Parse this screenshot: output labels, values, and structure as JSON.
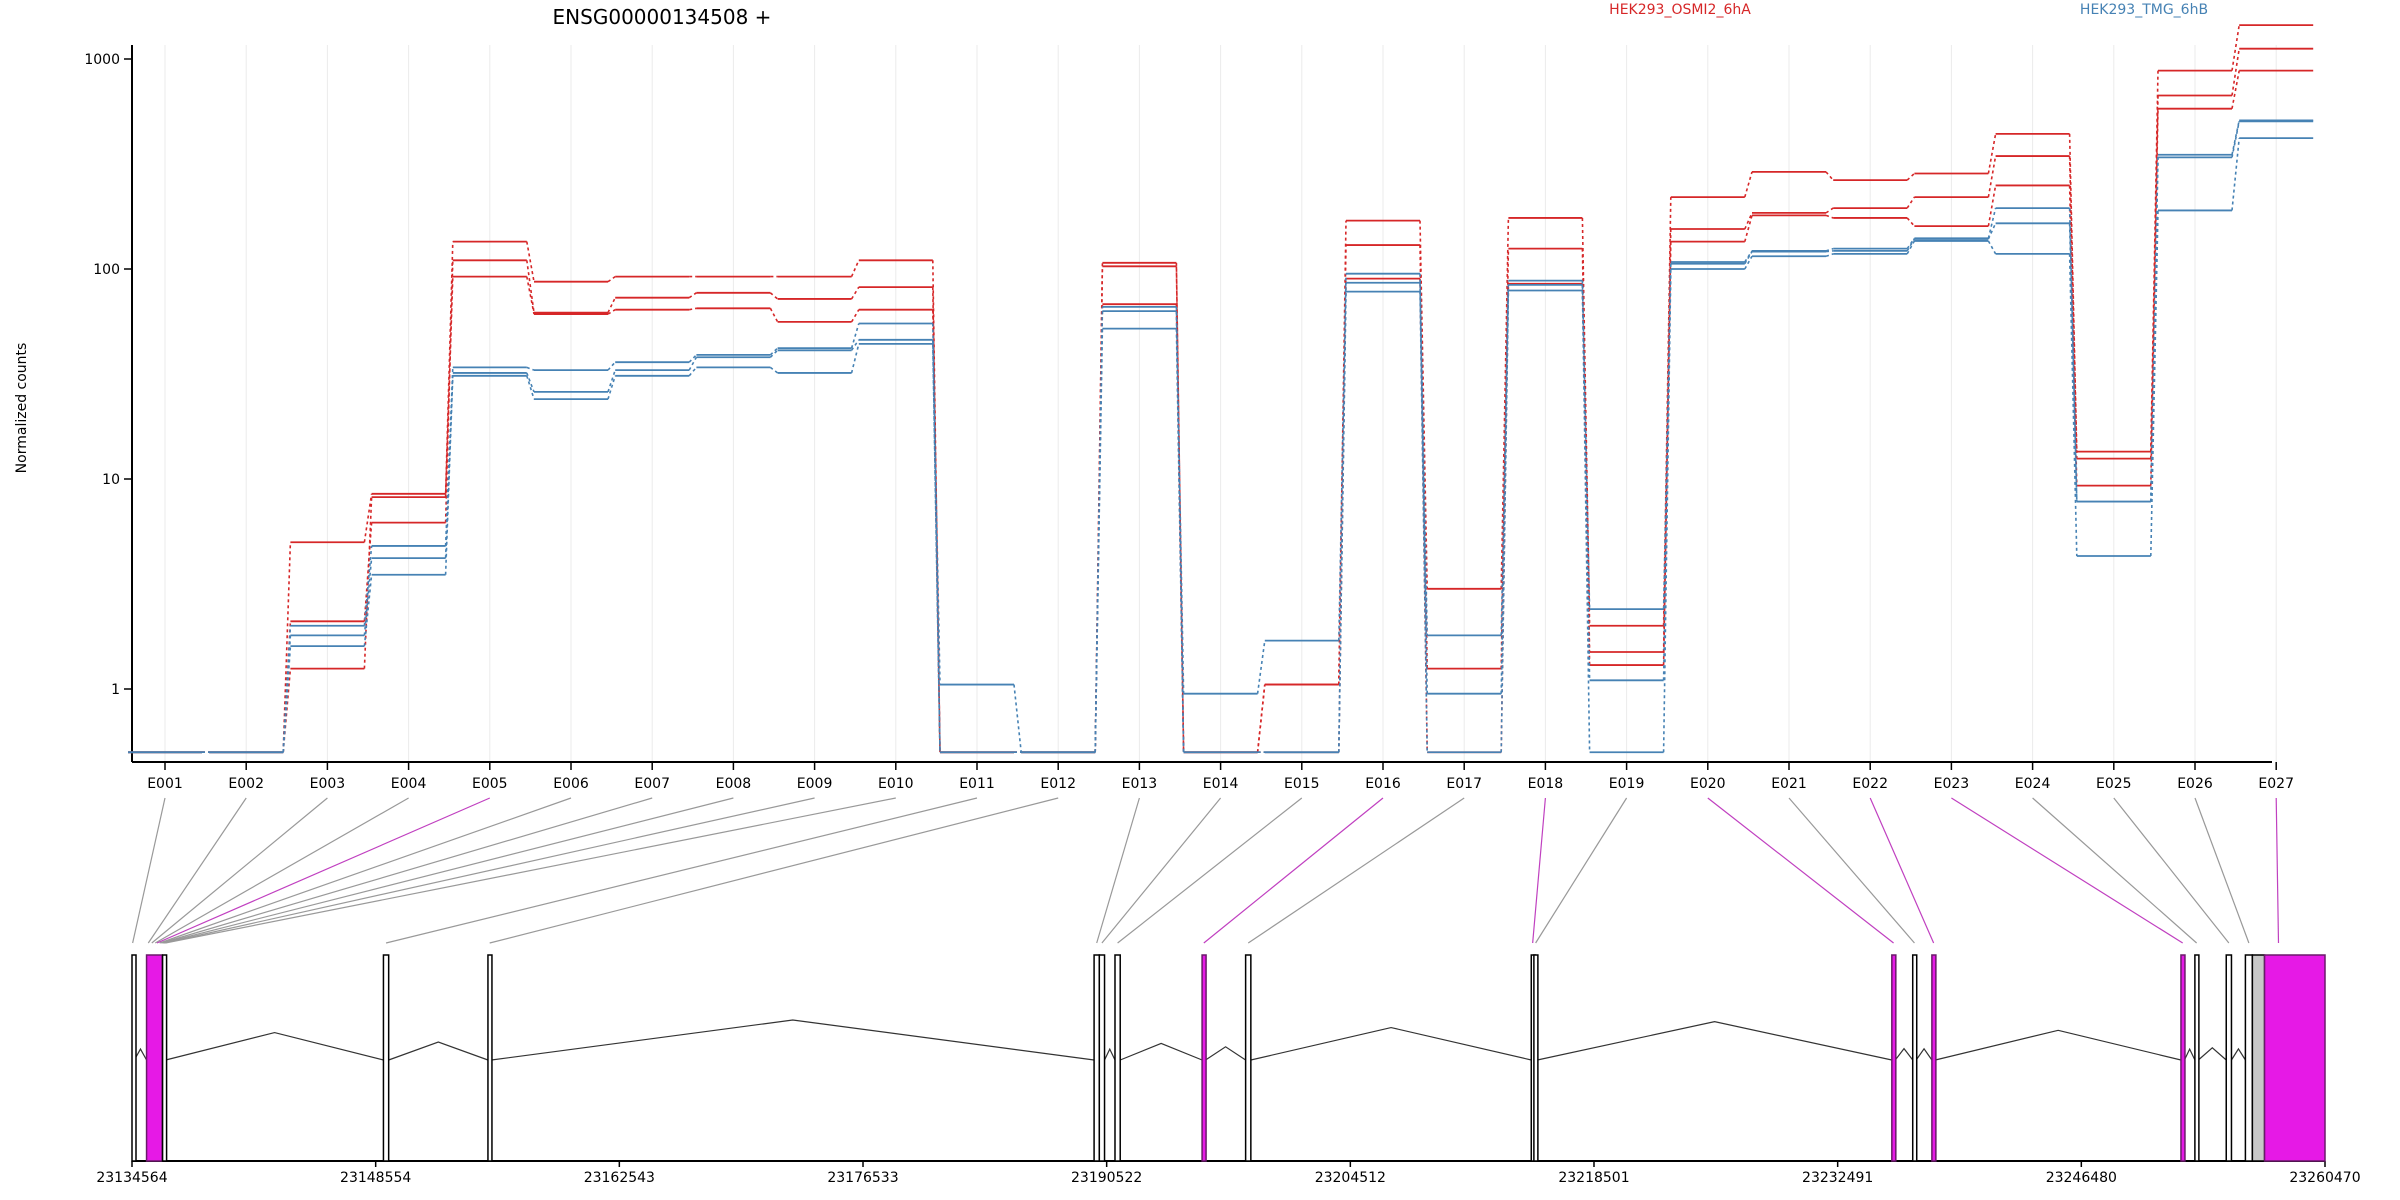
{
  "chart_data": {
    "type": "line",
    "title": "ENSG00000134508 +",
    "ylabel": "Normalized counts",
    "yscale": "log",
    "ylim": [
      0.5,
      2000
    ],
    "yticks": [
      1,
      10,
      100,
      1000
    ],
    "grid": true,
    "legend_placement": "top-right",
    "colors": {
      "groupA": "#d62728",
      "groupB": "#4682b4",
      "highlight": "#e619e6",
      "plain": "#ffffff",
      "tail": "#c8c8c8"
    },
    "categories": [
      "E001",
      "E002",
      "E003",
      "E004",
      "E005",
      "E006",
      "E007",
      "E008",
      "E009",
      "E010",
      "E011",
      "E012",
      "E013",
      "E014",
      "E015",
      "E016",
      "E017",
      "E018",
      "E019",
      "E020",
      "E021",
      "E022",
      "E023",
      "E024",
      "E025",
      "E026",
      "E027"
    ],
    "series": [
      {
        "name": "HEK293_OSMI2_6hA",
        "group": "A",
        "values": [
          0.5,
          0.5,
          5,
          8.5,
          135,
          87,
          92,
          92,
          92,
          110,
          0.5,
          0.5,
          107,
          0.5,
          1.05,
          170,
          3,
          175,
          2.0,
          220,
          290,
          265,
          285,
          440,
          13.5,
          880,
          1450
        ]
      },
      {
        "name": "",
        "group": "A",
        "values": [
          0.5,
          0.5,
          2.1,
          6.2,
          110,
          62,
          73,
          77,
          72,
          82,
          0.5,
          0.5,
          103,
          0.5,
          1.05,
          130,
          1.25,
          125,
          1.5,
          155,
          185,
          195,
          220,
          345,
          12.5,
          670,
          1120
        ]
      },
      {
        "name": "",
        "group": "A",
        "values": [
          0.5,
          0.5,
          1.25,
          8.2,
          92,
          61,
          64,
          65,
          56,
          64,
          0.5,
          0.5,
          68,
          0.5,
          0.5,
          90,
          0.5,
          85,
          1.3,
          135,
          180,
          175,
          160,
          250,
          9.3,
          580,
          880
        ]
      },
      {
        "name": "HEK293_TMG_6hB",
        "group": "B",
        "values": [
          0.5,
          0.5,
          2.0,
          4.8,
          34,
          33,
          36,
          39,
          42,
          55,
          1.05,
          0.5,
          66,
          0.95,
          1.7,
          95,
          1.8,
          88,
          2.4,
          108,
          122,
          125,
          140,
          195,
          7.8,
          350,
          510
        ]
      },
      {
        "name": "",
        "group": "B",
        "values": [
          0.5,
          0.5,
          1.8,
          4.2,
          32,
          26,
          33,
          38,
          41,
          46,
          0.5,
          0.5,
          63,
          0.5,
          0.5,
          86,
          0.95,
          84,
          1.1,
          106,
          121,
          122,
          139,
          165,
          7.8,
          340,
          505
        ]
      },
      {
        "name": "",
        "group": "B",
        "values": [
          0.5,
          0.5,
          1.6,
          3.5,
          31,
          24,
          31,
          34,
          32,
          44,
          0.5,
          0.5,
          52,
          0.5,
          0.5,
          78,
          0.5,
          79,
          0.5,
          100,
          115,
          118,
          136,
          118,
          4.3,
          190,
          420
        ]
      }
    ],
    "gene_model": {
      "xlabel_ticks": [
        "23134564",
        "23148554",
        "23162543",
        "23176533",
        "23190522",
        "23204512",
        "23218501",
        "23232491",
        "23246480",
        "23260470"
      ],
      "coord_range": [
        23134564,
        23260470
      ],
      "exons": [
        {
          "start": 23134564,
          "end": 23134700,
          "highlight": false
        },
        {
          "start": 23135400,
          "end": 23136300,
          "highlight": true
        },
        {
          "start": 23136320,
          "end": 23136500,
          "highlight": false
        },
        {
          "start": 23149000,
          "end": 23149300,
          "highlight": false
        },
        {
          "start": 23155000,
          "end": 23155200,
          "highlight": false
        },
        {
          "start": 23189800,
          "end": 23190100,
          "highlight": false
        },
        {
          "start": 23190100,
          "end": 23190400,
          "highlight": false
        },
        {
          "start": 23191000,
          "end": 23191300,
          "highlight": false
        },
        {
          "start": 23196000,
          "end": 23196200,
          "highlight": true
        },
        {
          "start": 23198500,
          "end": 23198800,
          "highlight": false
        },
        {
          "start": 23214900,
          "end": 23215050,
          "highlight": false
        },
        {
          "start": 23215050,
          "end": 23215250,
          "highlight": false
        },
        {
          "start": 23235600,
          "end": 23235800,
          "highlight": true
        },
        {
          "start": 23236800,
          "end": 23237000,
          "highlight": false
        },
        {
          "start": 23237900,
          "end": 23238100,
          "highlight": true
        },
        {
          "start": 23252200,
          "end": 23252400,
          "highlight": true
        },
        {
          "start": 23253000,
          "end": 23253200,
          "highlight": false
        },
        {
          "start": 23254800,
          "end": 23255100,
          "highlight": false
        },
        {
          "start": 23255900,
          "end": 23256300,
          "highlight": false
        },
        {
          "start": 23256300,
          "end": 23257000,
          "highlight": false,
          "tail": true
        },
        {
          "start": 23257000,
          "end": 23260470,
          "highlight": true
        }
      ],
      "links": [
        {
          "exon": "E001",
          "target": 23134600,
          "highlight": false
        },
        {
          "exon": "E002",
          "target": 23135500,
          "highlight": false
        },
        {
          "exon": "E003",
          "target": 23135700,
          "highlight": false
        },
        {
          "exon": "E004",
          "target": 23135900,
          "highlight": false
        },
        {
          "exon": "E005",
          "target": 23136000,
          "highlight": true
        },
        {
          "exon": "E006",
          "target": 23136150,
          "highlight": false
        },
        {
          "exon": "E007",
          "target": 23136250,
          "highlight": false
        },
        {
          "exon": "E008",
          "target": 23136330,
          "highlight": false
        },
        {
          "exon": "E009",
          "target": 23136400,
          "highlight": false
        },
        {
          "exon": "E010",
          "target": 23136480,
          "highlight": false
        },
        {
          "exon": "E011",
          "target": 23149150,
          "highlight": false
        },
        {
          "exon": "E012",
          "target": 23155100,
          "highlight": false
        },
        {
          "exon": "E013",
          "target": 23189950,
          "highlight": false
        },
        {
          "exon": "E014",
          "target": 23190250,
          "highlight": false
        },
        {
          "exon": "E015",
          "target": 23191150,
          "highlight": false
        },
        {
          "exon": "E016",
          "target": 23196100,
          "highlight": true
        },
        {
          "exon": "E017",
          "target": 23198650,
          "highlight": false
        },
        {
          "exon": "E018",
          "target": 23214980,
          "highlight": true
        },
        {
          "exon": "E019",
          "target": 23215150,
          "highlight": false
        },
        {
          "exon": "E020",
          "target": 23235700,
          "highlight": true
        },
        {
          "exon": "E021",
          "target": 23236900,
          "highlight": false
        },
        {
          "exon": "E022",
          "target": 23238000,
          "highlight": true
        },
        {
          "exon": "E023",
          "target": 23252300,
          "highlight": true
        },
        {
          "exon": "E024",
          "target": 23253100,
          "highlight": false
        },
        {
          "exon": "E025",
          "target": 23254950,
          "highlight": false
        },
        {
          "exon": "E026",
          "target": 23256100,
          "highlight": false
        },
        {
          "exon": "E027",
          "target": 23257800,
          "highlight": true
        }
      ]
    }
  }
}
